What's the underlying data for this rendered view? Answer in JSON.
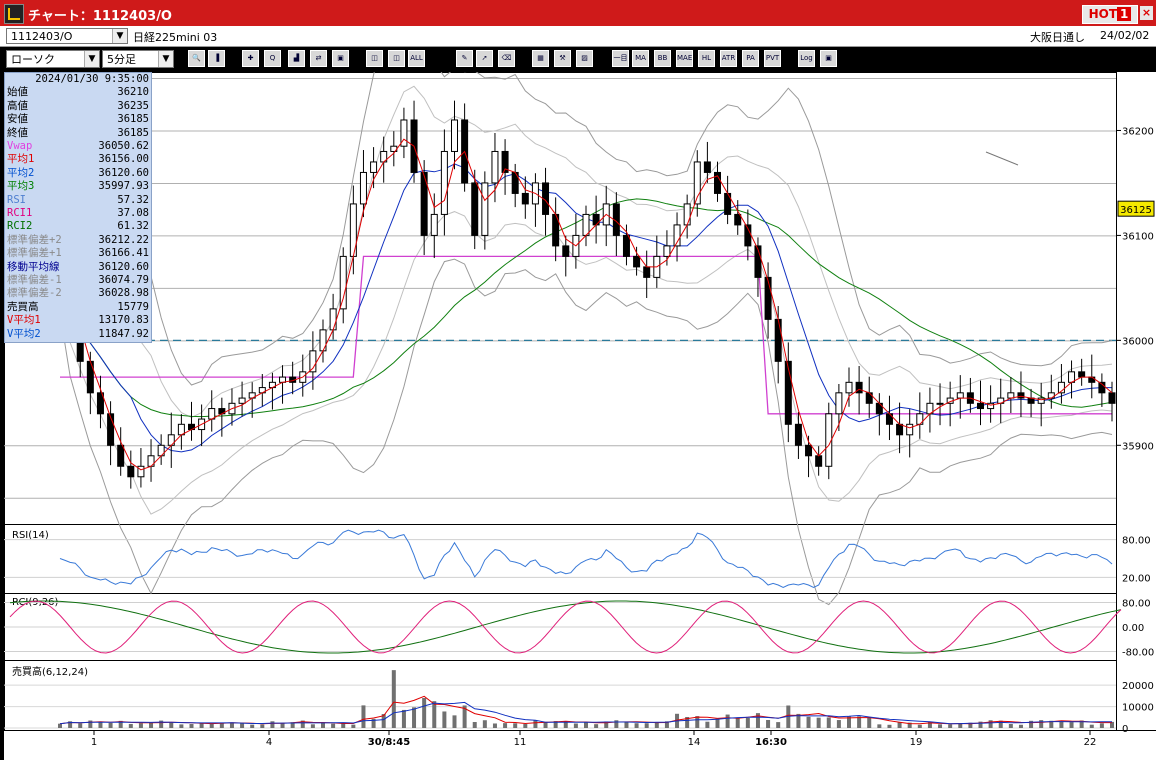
{
  "window": {
    "title": "チャート：1112403/O",
    "hot_label": "HOT",
    "hot_num": "1",
    "close": "×"
  },
  "infobar": {
    "symbol": "1112403/O",
    "name": "日経225mini 03",
    "session": "大阪日通し",
    "date": "24/02/02"
  },
  "controls": {
    "chart_type": "ローソク",
    "interval": "5分足"
  },
  "toolbar_buttons": [
    {
      "name": "zoom-icon",
      "label": "🔍"
    },
    {
      "name": "bar-icon",
      "label": "▐"
    },
    {
      "name": "cursor-icon",
      "label": "✚"
    },
    {
      "name": "magnify-icon",
      "label": "Q"
    },
    {
      "name": "chart-icon",
      "label": "▟"
    },
    {
      "name": "split-icon",
      "label": "⇄"
    },
    {
      "name": "gray-icon",
      "label": "▣"
    },
    {
      "name": "candle-a-icon",
      "label": "◫"
    },
    {
      "name": "candle-b-icon",
      "label": "◫"
    },
    {
      "name": "all-button",
      "label": "ALL"
    },
    {
      "name": "pen-icon",
      "label": "✎"
    },
    {
      "name": "pointer-icon",
      "label": "➚"
    },
    {
      "name": "eraser-icon",
      "label": "⌫"
    },
    {
      "name": "grid-icon",
      "label": "▦"
    },
    {
      "name": "wrench-icon",
      "label": "⚒"
    },
    {
      "name": "palette-icon",
      "label": "▨"
    },
    {
      "name": "ichimoku-icon",
      "label": "一目"
    },
    {
      "name": "ma-button",
      "label": "MA"
    },
    {
      "name": "bb-button",
      "label": "BB"
    },
    {
      "name": "mae-button",
      "label": "MAE"
    },
    {
      "name": "hl-button",
      "label": "HL"
    },
    {
      "name": "atr-button",
      "label": "ATR"
    },
    {
      "name": "para-button",
      "label": "PA RA"
    },
    {
      "name": "pvt-button",
      "label": "PVT"
    },
    {
      "name": "log-button",
      "label": "Log"
    },
    {
      "name": "export-icon",
      "label": "▣"
    }
  ],
  "ohlc_panel": {
    "datetime": "2024/01/30  9:35:00",
    "rows": [
      {
        "label": "始値",
        "value": "36210",
        "color": "#000000"
      },
      {
        "label": "高値",
        "value": "36235",
        "color": "#000000"
      },
      {
        "label": "安値",
        "value": "36185",
        "color": "#000000"
      },
      {
        "label": "終値",
        "value": "36185",
        "color": "#000000"
      },
      {
        "label": "Vwap",
        "value": "36050.62",
        "color": "#e040e0"
      },
      {
        "label": "平均1",
        "value": "36156.00",
        "color": "#e00000"
      },
      {
        "label": "平均2",
        "value": "36120.60",
        "color": "#0050d0"
      },
      {
        "label": "平均3",
        "value": "35997.93",
        "color": "#008000"
      },
      {
        "label": "RSI",
        "value": "57.32",
        "color": "#5080d0"
      },
      {
        "label": "RCI1",
        "value": "37.08",
        "color": "#e00080"
      },
      {
        "label": "RCI2",
        "value": "61.32",
        "color": "#007000"
      },
      {
        "label": "標準偏差+2",
        "value": "36212.22",
        "color": "#8a8a8a"
      },
      {
        "label": "標準偏差+1",
        "value": "36166.41",
        "color": "#8a8a8a"
      },
      {
        "label": "移動平均線",
        "value": "36120.60",
        "color": "#000090"
      },
      {
        "label": "標準偏差-1",
        "value": "36074.79",
        "color": "#8a8a8a"
      },
      {
        "label": "標準偏差-2",
        "value": "36028.98",
        "color": "#8a8a8a"
      },
      {
        "label": "売買高",
        "value": "15779",
        "color": "#000000"
      },
      {
        "label": "V平均1",
        "value": "13170.83",
        "color": "#e00000"
      },
      {
        "label": "V平均2",
        "value": "11847.92",
        "color": "#0050d0"
      }
    ]
  },
  "chart_data": {
    "type": "candlestick",
    "price_ticks": [
      36200,
      36100,
      36000,
      35900
    ],
    "price_range": [
      35825,
      36250
    ],
    "current_price": "36125",
    "dashed_level": 36000,
    "x_labels": [
      "1",
      "4",
      "30/8:45",
      "11",
      "14",
      "16:30",
      "19",
      "22"
    ],
    "colors": {
      "ma_short": "#e00000",
      "ma_mid": "#1030c0",
      "ma_long": "#108010",
      "vwap": "#d040d0",
      "band": "#9a9a9a",
      "rsi": "#3a7ad8",
      "rci1": "#e0207a",
      "rci2": "#107010",
      "vol": "#707070"
    },
    "rsi": {
      "label": "RSI(14)",
      "ticks": [
        "80.00",
        "20.00"
      ]
    },
    "rci": {
      "label": "RCI(9,26)",
      "ticks": [
        "80.00",
        "0.00",
        "-80.00"
      ]
    },
    "volume": {
      "label": "売買高(6,12,24)",
      "ticks": [
        "20000",
        "10000",
        "0"
      ]
    },
    "closes": [
      36050,
      36010,
      35980,
      35950,
      35930,
      35900,
      35880,
      35870,
      35880,
      35890,
      35900,
      35910,
      35920,
      35915,
      35925,
      35935,
      35930,
      35940,
      35945,
      35950,
      35955,
      35960,
      35965,
      35960,
      35970,
      35990,
      36010,
      36030,
      36080,
      36130,
      36160,
      36170,
      36180,
      36185,
      36210,
      36160,
      36100,
      36120,
      36180,
      36210,
      36150,
      36100,
      36150,
      36180,
      36160,
      36140,
      36130,
      36150,
      36120,
      36090,
      36080,
      36100,
      36120,
      36110,
      36130,
      36100,
      36080,
      36070,
      36060,
      36080,
      36090,
      36110,
      36130,
      36170,
      36160,
      36140,
      36120,
      36110,
      36090,
      36060,
      36020,
      35980,
      35920,
      35900,
      35890,
      35880,
      35930,
      35950,
      35960,
      35950,
      35940,
      35930,
      35920,
      35910,
      35920,
      35930,
      35940,
      35940,
      35945,
      35950,
      35940,
      35935,
      35940,
      35945,
      35950,
      35945,
      35940,
      35945,
      35950,
      35960,
      35970,
      35965,
      35960,
      35950,
      35940
    ]
  }
}
